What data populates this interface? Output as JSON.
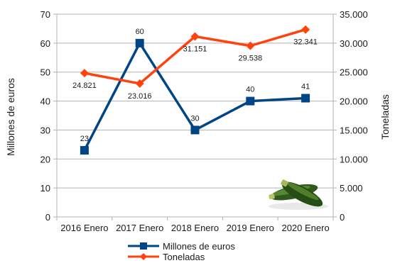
{
  "chart_data": {
    "type": "line",
    "categories": [
      "2016 Enero",
      "2017 Enero",
      "2018 Enero",
      "2019 Enero",
      "2020 Enero"
    ],
    "ylabel": "Millones de euros",
    "y2label": "Toneladas",
    "ylim": [
      0,
      70
    ],
    "y2lim": [
      0,
      35000
    ],
    "yticks": [
      "0",
      "10",
      "20",
      "30",
      "40",
      "50",
      "60",
      "70"
    ],
    "y2ticks": [
      "0",
      "5.000",
      "10.000",
      "15.000",
      "20.000",
      "25.000",
      "30.000",
      "35.000"
    ],
    "grid": true,
    "legend_position": "bottom",
    "series": [
      {
        "name": "Millones de euros",
        "axis": "left",
        "marker": "square",
        "color": "#004586",
        "values": [
          23,
          60,
          30,
          40,
          41
        ],
        "labels": [
          "23",
          "60",
          "30",
          "40",
          "41"
        ]
      },
      {
        "name": "Toneladas",
        "axis": "right",
        "marker": "diamond",
        "color": "#ff420e",
        "values": [
          24821,
          23016,
          31151,
          29538,
          32341
        ],
        "labels": [
          "24.821",
          "23.016",
          "31.151",
          "29.538",
          "32.341"
        ]
      }
    ],
    "image": "zucchini-icon"
  }
}
